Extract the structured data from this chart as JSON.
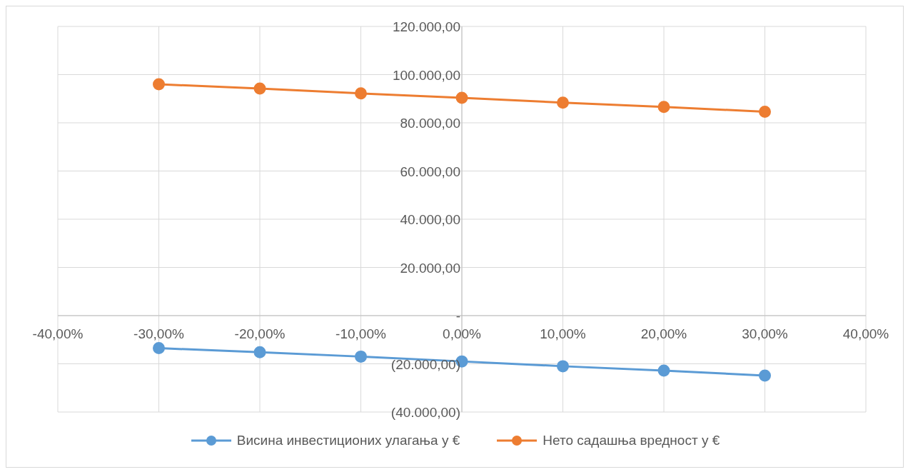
{
  "chart_data": {
    "type": "line",
    "x": [
      -30,
      -20,
      -10,
      0,
      10,
      20,
      30
    ],
    "series": [
      {
        "name": "Висина инвестиционих улагања у €",
        "color": "#5b9bd5",
        "values": [
          -13500,
          -15200,
          -17000,
          -19000,
          -21000,
          -22800,
          -24900
        ]
      },
      {
        "name": "Нето садашња вредност у €",
        "color": "#ed7d31",
        "values": [
          96000,
          94200,
          92200,
          90400,
          88400,
          86600,
          84600
        ]
      }
    ],
    "xlim": [
      -40,
      40
    ],
    "xticks": [
      {
        "value": -40,
        "label": "-40,00%"
      },
      {
        "value": -30,
        "label": "-30,00%"
      },
      {
        "value": -20,
        "label": "-20,00%"
      },
      {
        "value": -10,
        "label": "-10,00%"
      },
      {
        "value": 0,
        "label": "0,00%"
      },
      {
        "value": 10,
        "label": "10,00%"
      },
      {
        "value": 20,
        "label": "20,00%"
      },
      {
        "value": 30,
        "label": "30,00%"
      },
      {
        "value": 40,
        "label": "40,00%"
      }
    ],
    "ylim": [
      -40000,
      120000
    ],
    "yticks": [
      {
        "value": -40000,
        "label": "(40.000,00)"
      },
      {
        "value": -20000,
        "label": "(20.000,00)"
      },
      {
        "value": 0,
        "label": "-"
      },
      {
        "value": 20000,
        "label": "20.000,00"
      },
      {
        "value": 40000,
        "label": "40.000,00"
      },
      {
        "value": 60000,
        "label": "60.000,00"
      },
      {
        "value": 80000,
        "label": "80.000,00"
      },
      {
        "value": 100000,
        "label": "100.000,00"
      },
      {
        "value": 120000,
        "label": "120.000,00"
      }
    ],
    "grid": true,
    "legend": "bottom",
    "marker": "circle",
    "line_style": "solid"
  }
}
